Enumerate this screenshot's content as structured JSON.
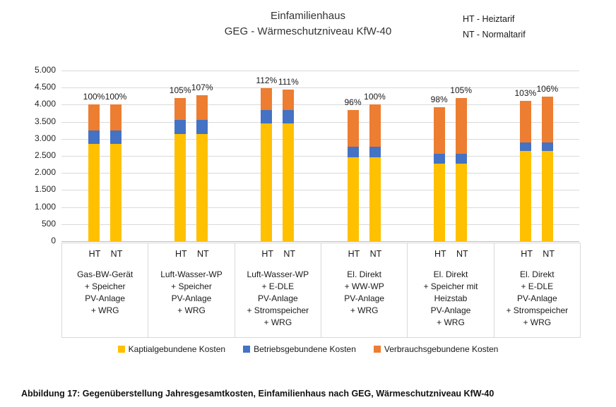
{
  "legend_notes": [
    "HT - Heiztarif",
    "NT - Normaltarif"
  ],
  "caption": "Abbildung 17: Gegenüberstellung Jahresgesamtkosten, Einfamilienhaus nach GEG, Wärmeschutzniveau KfW-40",
  "chart_data": {
    "type": "bar",
    "stacked": true,
    "title": "Einfamilienhaus",
    "subtitle": "GEG - Wärmeschutzniveau KfW-40",
    "ylim": [
      0,
      5000
    ],
    "grid": true,
    "ytick_values": [
      0,
      500,
      1000,
      1500,
      2000,
      2500,
      3000,
      3500,
      4000,
      4500,
      5000
    ],
    "ytick_labels": [
      "0",
      "500",
      "1.000",
      "1.500",
      "2.000",
      "2.500",
      "3.000",
      "3.500",
      "4.000",
      "4.500",
      "5.000"
    ],
    "bar_labels": [
      "HT",
      "NT"
    ],
    "series": [
      {
        "key": "kapital",
        "name": "Kaptialgebundene Kosten",
        "color": "#FFC000"
      },
      {
        "key": "betrieb",
        "name": "Betriebsgebundene Kosten",
        "color": "#4472C4"
      },
      {
        "key": "verbrauch",
        "name": "Verbrauchsgebundene Kosten",
        "color": "#ED7D31"
      }
    ],
    "legend_position": "bottom",
    "groups": [
      {
        "label_lines": [
          "Gas-BW-Gerät",
          "+ Speicher",
          "PV-Anlage",
          "+ WRG"
        ],
        "bars": [
          {
            "tariff": "HT",
            "pct": "100%",
            "kapital": 2850,
            "betrieb": 400,
            "verbrauch": 750
          },
          {
            "tariff": "NT",
            "pct": "100%",
            "kapital": 2850,
            "betrieb": 400,
            "verbrauch": 750
          }
        ]
      },
      {
        "label_lines": [
          "Luft-Wasser-WP",
          "+ Speicher",
          "PV-Anlage",
          "+ WRG"
        ],
        "bars": [
          {
            "tariff": "HT",
            "pct": "105%",
            "kapital": 3150,
            "betrieb": 400,
            "verbrauch": 650
          },
          {
            "tariff": "NT",
            "pct": "107%",
            "kapital": 3150,
            "betrieb": 400,
            "verbrauch": 730
          }
        ]
      },
      {
        "label_lines": [
          "Luft-Wasser-WP",
          "+ E-DLE",
          "PV-Anlage",
          "+ Stromspeicher",
          "+ WRG"
        ],
        "bars": [
          {
            "tariff": "HT",
            "pct": "112%",
            "kapital": 3450,
            "betrieb": 400,
            "verbrauch": 630
          },
          {
            "tariff": "NT",
            "pct": "111%",
            "kapital": 3450,
            "betrieb": 400,
            "verbrauch": 590
          }
        ]
      },
      {
        "label_lines": [
          "El. Direkt",
          "+ WW-WP",
          "PV-Anlage",
          "+ WRG"
        ],
        "bars": [
          {
            "tariff": "HT",
            "pct": "96%",
            "kapital": 2450,
            "betrieb": 320,
            "verbrauch": 1070
          },
          {
            "tariff": "NT",
            "pct": "100%",
            "kapital": 2450,
            "betrieb": 320,
            "verbrauch": 1230
          }
        ]
      },
      {
        "label_lines": [
          "El. Direkt",
          "+ Speicher mit",
          "Heizstab",
          "PV-Anlage",
          "+ WRG"
        ],
        "bars": [
          {
            "tariff": "HT",
            "pct": "98%",
            "kapital": 2280,
            "betrieb": 280,
            "verbrauch": 1360
          },
          {
            "tariff": "NT",
            "pct": "105%",
            "kapital": 2280,
            "betrieb": 280,
            "verbrauch": 1640
          }
        ]
      },
      {
        "label_lines": [
          "El. Direkt",
          "+ E-DLE",
          "PV-Anlage",
          "+ Stromspeicher",
          "+ WRG"
        ],
        "bars": [
          {
            "tariff": "HT",
            "pct": "103%",
            "kapital": 2650,
            "betrieb": 250,
            "verbrauch": 1220
          },
          {
            "tariff": "NT",
            "pct": "106%",
            "kapital": 2650,
            "betrieb": 250,
            "verbrauch": 1340
          }
        ]
      }
    ]
  }
}
